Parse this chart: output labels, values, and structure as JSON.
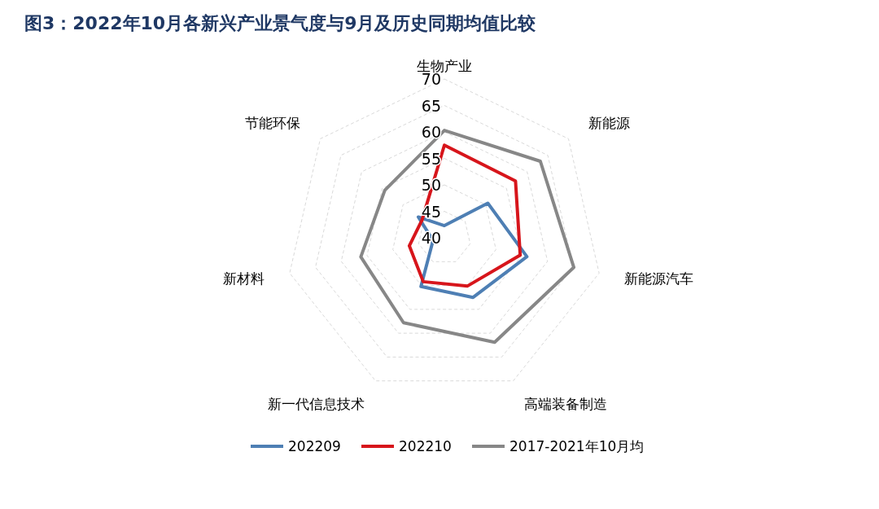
{
  "chart_data": {
    "type": "radar",
    "title": "图3：2022年10月各新兴产业景气度与9月及历史同期均值比较",
    "categories": [
      "生物产业",
      "新能源",
      "新能源汽车",
      "高端装备制造",
      "新一代信息技术",
      "新材料",
      "节能环保"
    ],
    "series": [
      {
        "name": "202209",
        "color": "#4e7fb4",
        "values": [
          42.3,
          50.5,
          56.0,
          52.5,
          50.2,
          42.2,
          46.3
        ]
      },
      {
        "name": "202210",
        "color": "#d7151b",
        "values": [
          57.5,
          57.2,
          54.7,
          50.1,
          49.2,
          46.8,
          45.4
        ]
      },
      {
        "name": "2017-2021年10月均",
        "color": "#878787",
        "values": [
          60.3,
          63.2,
          65.1,
          61.9,
          57.8,
          56.2,
          54.4
        ]
      }
    ],
    "ylim": [
      40,
      70
    ],
    "yticks": [
      40,
      45,
      50,
      55,
      60,
      65,
      70
    ],
    "grid": true,
    "legend": "bottom",
    "marker": "none",
    "line_style": "solid"
  }
}
